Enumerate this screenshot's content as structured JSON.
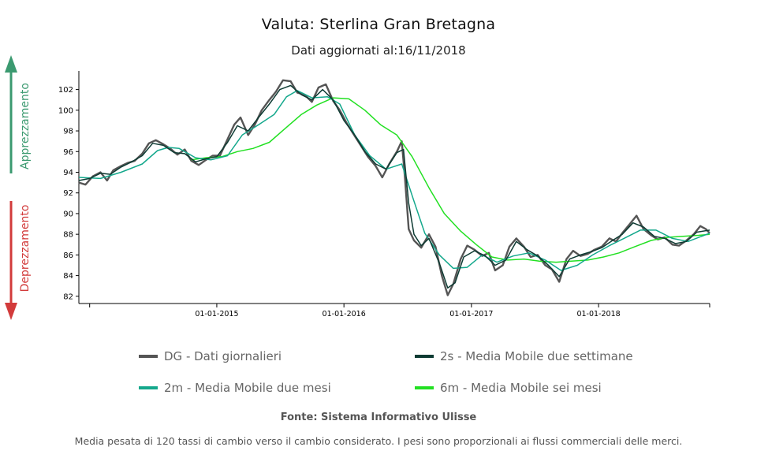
{
  "colors": {
    "appreciation": "#3b9a70",
    "depreciation": "#d23b3b",
    "dg": "#555555",
    "ma2s": "#0e3b33",
    "ma2m": "#14a88c",
    "ma6m": "#22e022"
  },
  "header": {
    "title": "Valuta: Sterlina Gran Bretagna",
    "subtitle": "Dati aggiornati al:16/11/2018"
  },
  "side_labels": {
    "appreciation": "Apprezzamento",
    "depreciation": "Deprezzamento"
  },
  "legend": [
    {
      "key": "dg",
      "label": "DG - Dati giornalieri"
    },
    {
      "key": "ma2s",
      "label": "2s - Media Mobile due settimane"
    },
    {
      "key": "ma2m",
      "label": "2m - Media Mobile due mesi"
    },
    {
      "key": "ma6m",
      "label": "6m - Media Mobile sei mesi"
    }
  ],
  "source": "Fonte: Sistema Informativo Ulisse",
  "footnote": "Media pesata di 120 tassi di cambio verso il cambio considerato. I pesi sono proporzionali ai flussi commerciali delle merci.",
  "chart_data": {
    "type": "line",
    "title": "Valuta: Sterlina Gran Bretagna",
    "subtitle": "Dati aggiornati al:16/11/2018",
    "x_range": [
      "2013-12-01",
      "2018-11-16"
    ],
    "xticks": [
      {
        "date": "2014-01-01",
        "label": ""
      },
      {
        "date": "2015-01-01",
        "label": "01-01-2015"
      },
      {
        "date": "2016-01-01",
        "label": "01-01-2016"
      },
      {
        "date": "2017-01-01",
        "label": "01-01-2017"
      },
      {
        "date": "2018-01-01",
        "label": "01-01-2018"
      },
      {
        "date": "2018-11-16",
        "label": ""
      }
    ],
    "yticks": [
      82,
      84,
      86,
      88,
      90,
      92,
      94,
      96,
      98,
      100,
      102
    ],
    "ylim": [
      81.3,
      103.8
    ],
    "grid": false,
    "legend_position": "bottom",
    "series": [
      {
        "key": "dg",
        "name": "DG - Dati giornalieri",
        "points": [
          [
            "2013-12-01",
            93.0
          ],
          [
            "2013-12-20",
            92.8
          ],
          [
            "2014-01-10",
            93.6
          ],
          [
            "2014-02-01",
            94.0
          ],
          [
            "2014-02-20",
            93.2
          ],
          [
            "2014-03-10",
            94.2
          ],
          [
            "2014-04-01",
            94.6
          ],
          [
            "2014-04-20",
            94.9
          ],
          [
            "2014-05-10",
            95.1
          ],
          [
            "2014-06-01",
            95.8
          ],
          [
            "2014-06-20",
            96.8
          ],
          [
            "2014-07-10",
            97.1
          ],
          [
            "2014-08-01",
            96.7
          ],
          [
            "2014-08-20",
            96.3
          ],
          [
            "2014-09-10",
            95.7
          ],
          [
            "2014-10-01",
            96.2
          ],
          [
            "2014-10-20",
            95.1
          ],
          [
            "2014-11-10",
            94.7
          ],
          [
            "2014-12-01",
            95.2
          ],
          [
            "2014-12-20",
            95.6
          ],
          [
            "2015-01-10",
            95.6
          ],
          [
            "2015-02-01",
            97.2
          ],
          [
            "2015-02-20",
            98.6
          ],
          [
            "2015-03-10",
            99.3
          ],
          [
            "2015-04-01",
            97.6
          ],
          [
            "2015-04-20",
            98.6
          ],
          [
            "2015-05-10",
            100.0
          ],
          [
            "2015-06-01",
            101.0
          ],
          [
            "2015-06-20",
            101.8
          ],
          [
            "2015-07-10",
            102.9
          ],
          [
            "2015-08-01",
            102.8
          ],
          [
            "2015-08-20",
            101.7
          ],
          [
            "2015-09-10",
            101.5
          ],
          [
            "2015-10-01",
            100.8
          ],
          [
            "2015-10-20",
            102.2
          ],
          [
            "2015-11-10",
            102.5
          ],
          [
            "2015-12-01",
            100.9
          ],
          [
            "2015-12-20",
            100.0
          ],
          [
            "2016-01-10",
            98.7
          ],
          [
            "2016-02-01",
            97.5
          ],
          [
            "2016-02-20",
            96.5
          ],
          [
            "2016-03-10",
            95.5
          ],
          [
            "2016-04-01",
            94.6
          ],
          [
            "2016-04-20",
            93.5
          ],
          [
            "2016-05-10",
            94.8
          ],
          [
            "2016-06-01",
            96.0
          ],
          [
            "2016-06-15",
            97.0
          ],
          [
            "2016-06-24",
            93.5
          ],
          [
            "2016-07-05",
            88.5
          ],
          [
            "2016-07-20",
            87.4
          ],
          [
            "2016-08-10",
            86.7
          ],
          [
            "2016-09-01",
            88.0
          ],
          [
            "2016-09-20",
            86.8
          ],
          [
            "2016-10-08",
            84.0
          ],
          [
            "2016-10-25",
            82.1
          ],
          [
            "2016-11-10",
            83.2
          ],
          [
            "2016-12-01",
            85.6
          ],
          [
            "2016-12-20",
            86.9
          ],
          [
            "2017-01-10",
            86.5
          ],
          [
            "2017-02-01",
            85.9
          ],
          [
            "2017-02-20",
            86.2
          ],
          [
            "2017-03-10",
            84.5
          ],
          [
            "2017-04-01",
            85.0
          ],
          [
            "2017-04-20",
            86.8
          ],
          [
            "2017-05-10",
            87.6
          ],
          [
            "2017-06-01",
            86.8
          ],
          [
            "2017-06-20",
            85.8
          ],
          [
            "2017-07-10",
            86.0
          ],
          [
            "2017-08-01",
            85.0
          ],
          [
            "2017-08-20",
            84.6
          ],
          [
            "2017-09-10",
            83.4
          ],
          [
            "2017-10-01",
            85.6
          ],
          [
            "2017-10-20",
            86.4
          ],
          [
            "2017-11-10",
            85.9
          ],
          [
            "2017-12-01",
            86.1
          ],
          [
            "2017-12-20",
            86.5
          ],
          [
            "2018-01-10",
            86.8
          ],
          [
            "2018-02-01",
            87.6
          ],
          [
            "2018-02-20",
            87.3
          ],
          [
            "2018-03-10",
            88.1
          ],
          [
            "2018-04-01",
            89.0
          ],
          [
            "2018-04-20",
            89.8
          ],
          [
            "2018-05-10",
            88.5
          ],
          [
            "2018-06-01",
            87.9
          ],
          [
            "2018-06-20",
            87.5
          ],
          [
            "2018-07-10",
            87.7
          ],
          [
            "2018-08-01",
            87.0
          ],
          [
            "2018-08-20",
            86.9
          ],
          [
            "2018-09-10",
            87.4
          ],
          [
            "2018-10-01",
            88.0
          ],
          [
            "2018-10-20",
            88.8
          ],
          [
            "2018-11-05",
            88.5
          ],
          [
            "2018-11-16",
            88.1
          ]
        ]
      },
      {
        "key": "ma2s",
        "name": "2s - Media Mobile due settimane",
        "points": [
          [
            "2013-12-01",
            93.2
          ],
          [
            "2014-01-01",
            93.4
          ],
          [
            "2014-02-01",
            93.9
          ],
          [
            "2014-03-01",
            93.8
          ],
          [
            "2014-04-01",
            94.5
          ],
          [
            "2014-05-01",
            95.0
          ],
          [
            "2014-06-01",
            95.6
          ],
          [
            "2014-07-01",
            96.8
          ],
          [
            "2014-08-01",
            96.6
          ],
          [
            "2014-09-01",
            95.9
          ],
          [
            "2014-10-01",
            95.8
          ],
          [
            "2014-11-01",
            95.0
          ],
          [
            "2014-12-01",
            95.3
          ],
          [
            "2015-01-01",
            95.5
          ],
          [
            "2015-02-01",
            96.9
          ],
          [
            "2015-03-01",
            98.5
          ],
          [
            "2015-04-01",
            98.0
          ],
          [
            "2015-05-01",
            99.3
          ],
          [
            "2015-06-01",
            100.6
          ],
          [
            "2015-07-01",
            102.0
          ],
          [
            "2015-08-01",
            102.4
          ],
          [
            "2015-09-01",
            101.5
          ],
          [
            "2015-10-01",
            101.0
          ],
          [
            "2015-11-01",
            102.0
          ],
          [
            "2015-12-01",
            101.0
          ],
          [
            "2016-01-01",
            99.0
          ],
          [
            "2016-02-01",
            97.6
          ],
          [
            "2016-03-01",
            96.0
          ],
          [
            "2016-04-01",
            94.8
          ],
          [
            "2016-05-01",
            94.3
          ],
          [
            "2016-06-01",
            95.9
          ],
          [
            "2016-06-20",
            96.2
          ],
          [
            "2016-07-05",
            91.0
          ],
          [
            "2016-07-20",
            88.0
          ],
          [
            "2016-08-10",
            86.9
          ],
          [
            "2016-09-01",
            87.6
          ],
          [
            "2016-10-01",
            85.2
          ],
          [
            "2016-10-25",
            82.8
          ],
          [
            "2016-11-15",
            83.3
          ],
          [
            "2016-12-10",
            85.8
          ],
          [
            "2017-01-10",
            86.4
          ],
          [
            "2017-02-10",
            85.9
          ],
          [
            "2017-03-10",
            85.0
          ],
          [
            "2017-04-10",
            85.5
          ],
          [
            "2017-05-10",
            87.3
          ],
          [
            "2017-06-10",
            86.5
          ],
          [
            "2017-07-10",
            85.9
          ],
          [
            "2017-08-10",
            85.0
          ],
          [
            "2017-09-10",
            83.9
          ],
          [
            "2017-10-10",
            85.6
          ],
          [
            "2017-11-10",
            86.0
          ],
          [
            "2017-12-10",
            86.3
          ],
          [
            "2018-01-10",
            86.7
          ],
          [
            "2018-02-10",
            87.4
          ],
          [
            "2018-03-10",
            88.0
          ],
          [
            "2018-04-10",
            89.1
          ],
          [
            "2018-05-10",
            88.7
          ],
          [
            "2018-06-10",
            87.8
          ],
          [
            "2018-07-10",
            87.6
          ],
          [
            "2018-08-10",
            87.1
          ],
          [
            "2018-09-10",
            87.3
          ],
          [
            "2018-10-10",
            88.2
          ],
          [
            "2018-11-16",
            88.4
          ]
        ]
      },
      {
        "key": "ma2m",
        "name": "2m - Media Mobile due mesi",
        "points": [
          [
            "2013-12-01",
            93.5
          ],
          [
            "2014-02-01",
            93.4
          ],
          [
            "2014-04-01",
            94.0
          ],
          [
            "2014-06-01",
            94.8
          ],
          [
            "2014-07-15",
            96.1
          ],
          [
            "2014-08-15",
            96.4
          ],
          [
            "2014-09-15",
            96.3
          ],
          [
            "2014-11-01",
            95.4
          ],
          [
            "2014-12-15",
            95.2
          ],
          [
            "2015-02-01",
            95.6
          ],
          [
            "2015-03-15",
            97.6
          ],
          [
            "2015-05-01",
            98.6
          ],
          [
            "2015-06-15",
            99.6
          ],
          [
            "2015-07-20",
            101.3
          ],
          [
            "2015-08-20",
            101.9
          ],
          [
            "2015-10-01",
            101.2
          ],
          [
            "2015-11-15",
            101.3
          ],
          [
            "2015-12-20",
            100.6
          ],
          [
            "2016-02-01",
            97.6
          ],
          [
            "2016-03-15",
            95.6
          ],
          [
            "2016-05-01",
            94.3
          ],
          [
            "2016-06-15",
            94.8
          ],
          [
            "2016-07-20",
            91.2
          ],
          [
            "2016-08-20",
            88.1
          ],
          [
            "2016-10-01",
            86.0
          ],
          [
            "2016-11-10",
            84.7
          ],
          [
            "2016-12-20",
            84.8
          ],
          [
            "2017-02-01",
            86.0
          ],
          [
            "2017-03-15",
            85.3
          ],
          [
            "2017-05-01",
            85.9
          ],
          [
            "2017-06-15",
            86.2
          ],
          [
            "2017-08-01",
            85.5
          ],
          [
            "2017-09-15",
            84.5
          ],
          [
            "2017-11-01",
            85.0
          ],
          [
            "2017-12-15",
            86.0
          ],
          [
            "2018-02-01",
            86.9
          ],
          [
            "2018-03-15",
            87.6
          ],
          [
            "2018-05-01",
            88.4
          ],
          [
            "2018-06-15",
            88.4
          ],
          [
            "2018-08-01",
            87.6
          ],
          [
            "2018-09-15",
            87.3
          ],
          [
            "2018-11-16",
            88.1
          ]
        ]
      },
      {
        "key": "ma6m",
        "name": "6m - Media Mobile sei mesi",
        "points": [
          [
            "2014-10-20",
            95.2
          ],
          [
            "2014-12-01",
            95.4
          ],
          [
            "2015-01-15",
            95.5
          ],
          [
            "2015-03-01",
            96.0
          ],
          [
            "2015-04-15",
            96.3
          ],
          [
            "2015-06-01",
            96.9
          ],
          [
            "2015-07-15",
            98.2
          ],
          [
            "2015-09-01",
            99.6
          ],
          [
            "2015-10-15",
            100.5
          ],
          [
            "2015-12-01",
            101.2
          ],
          [
            "2016-01-15",
            101.1
          ],
          [
            "2016-03-01",
            100.0
          ],
          [
            "2016-04-15",
            98.6
          ],
          [
            "2016-06-01",
            97.6
          ],
          [
            "2016-07-15",
            95.5
          ],
          [
            "2016-09-01",
            92.5
          ],
          [
            "2016-10-15",
            90.0
          ],
          [
            "2016-12-01",
            88.3
          ],
          [
            "2017-01-15",
            87.0
          ],
          [
            "2017-03-01",
            85.8
          ],
          [
            "2017-04-15",
            85.5
          ],
          [
            "2017-06-01",
            85.6
          ],
          [
            "2017-07-15",
            85.4
          ],
          [
            "2017-09-01",
            85.3
          ],
          [
            "2017-10-15",
            85.4
          ],
          [
            "2017-12-01",
            85.5
          ],
          [
            "2018-01-15",
            85.8
          ],
          [
            "2018-03-01",
            86.2
          ],
          [
            "2018-04-15",
            86.8
          ],
          [
            "2018-06-01",
            87.4
          ],
          [
            "2018-07-15",
            87.7
          ],
          [
            "2018-09-01",
            87.8
          ],
          [
            "2018-10-15",
            87.9
          ],
          [
            "2018-11-16",
            88.0
          ]
        ]
      }
    ]
  }
}
